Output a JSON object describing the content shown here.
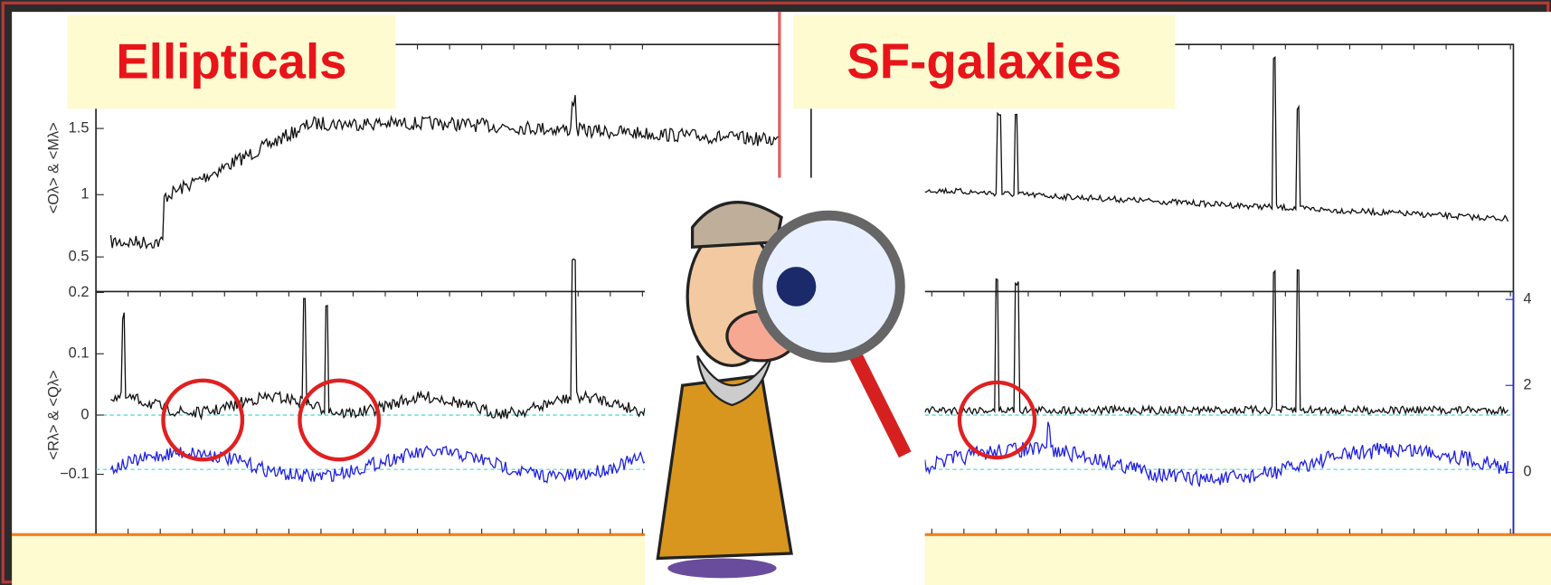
{
  "panels": [
    {
      "title": "Ellipticals",
      "y_label_top": "<Oλ> & <Mλ>",
      "y_label_bottom": "<Rλ> & <Qλ>",
      "ticks_top": [
        "1.5",
        "1",
        "0.5",
        "0.2"
      ],
      "ticks_bottom": [
        "0.1",
        "0",
        "−0.1"
      ]
    },
    {
      "title": "SF-galaxies",
      "ticks_right": [
        "4",
        "2",
        "0"
      ]
    }
  ]
}
